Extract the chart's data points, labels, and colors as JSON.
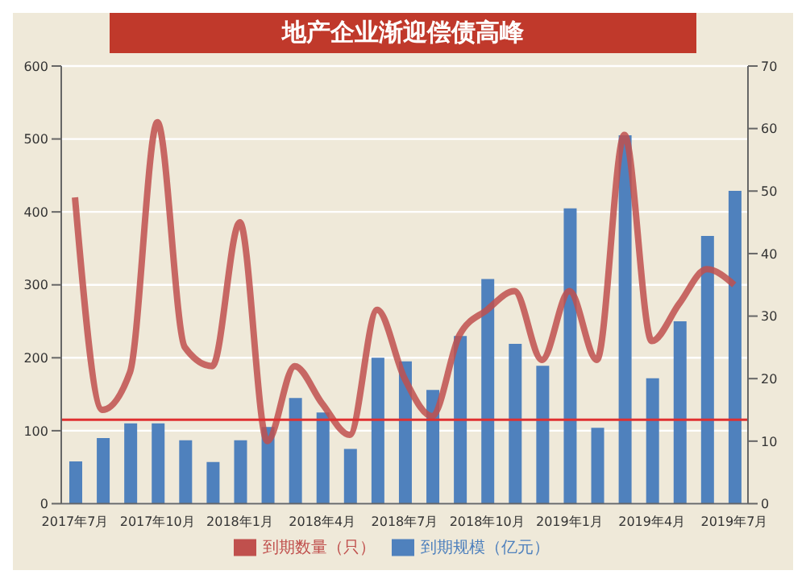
{
  "chart_data": {
    "type": "bar",
    "title": "地产企业渐迎偿债高峰",
    "categories": [
      "2017年7月",
      null,
      null,
      "2017年10月",
      null,
      null,
      "2018年1月",
      null,
      null,
      "2018年4月",
      null,
      null,
      "2018年7月",
      null,
      null,
      "2018年10月",
      null,
      null,
      "2019年1月",
      null,
      null,
      "2019年4月",
      null,
      null,
      "2019年7月"
    ],
    "series": [
      {
        "name": "到期规模（亿元）",
        "color": "#4f81bd",
        "values": [
          58,
          90,
          110,
          110,
          87,
          57,
          87,
          105,
          145,
          125,
          75,
          200,
          195,
          156,
          230,
          308,
          219,
          189,
          405,
          104,
          505,
          172,
          250,
          367,
          429
        ]
      },
      {
        "name": "到期数量（只）",
        "type": "line",
        "axis": "y2",
        "color": "#c0504d",
        "line_style": "solid",
        "marker": "none",
        "values": [
          49,
          15,
          21,
          61,
          25,
          22,
          45,
          10,
          22,
          16,
          11,
          31,
          20,
          14,
          27,
          31,
          34,
          23,
          34,
          23,
          59,
          26,
          32,
          37.5,
          35
        ]
      }
    ],
    "ylim": [
      0,
      600
    ],
    "yticks": [
      0,
      100,
      200,
      300,
      400,
      500,
      600
    ],
    "y2lim": [
      0,
      70
    ],
    "y2ticks": [
      0,
      10,
      20,
      30,
      40,
      50,
      60,
      70
    ],
    "ref_lines": [
      {
        "axis": "y",
        "value": 115,
        "color": "#e03030"
      }
    ],
    "grid": "y",
    "legend": "bottom"
  }
}
